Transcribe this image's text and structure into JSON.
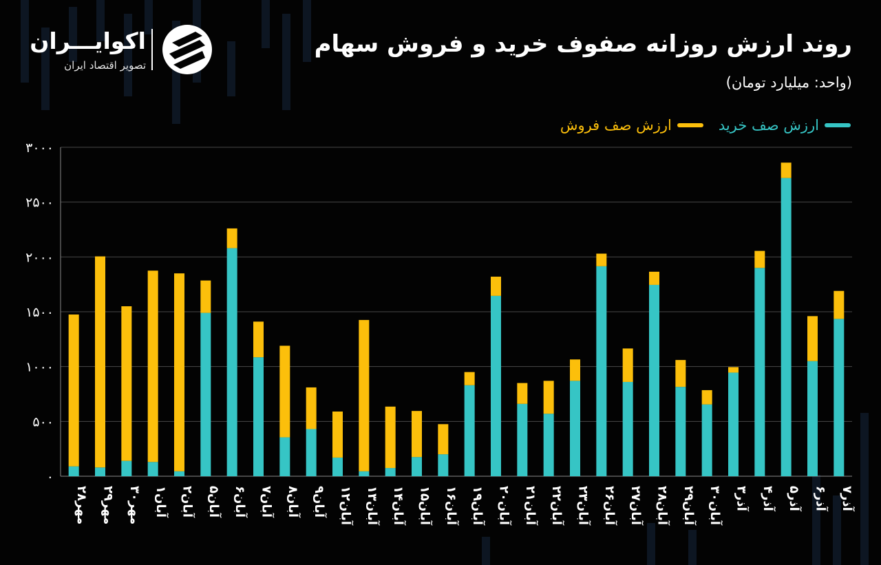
{
  "title": "روند ارزش روزانه صفوف خرید و فروش سهام",
  "subtitle": "(واحد: میلیارد تومان)",
  "logo": {
    "name": "اکوایـــران",
    "tagline": "تصویر اقتصاد ایران"
  },
  "colors": {
    "buy": "#36c5c5",
    "sell": "#fcbf0b",
    "background": "#030303",
    "grid": "#4a4a4a"
  },
  "chart_data": {
    "type": "bar",
    "stacked": true,
    "title": "روند ارزش روزانه صفوف خرید و فروش سهام",
    "subtitle": "(واحد: میلیارد تومان)",
    "legend_position": "top-right",
    "grid": true,
    "ylim": [
      0,
      3000
    ],
    "yticks": [
      0,
      500,
      1000,
      1500,
      2000,
      2500,
      3000
    ],
    "ytick_labels": [
      "۰",
      "۵۰۰",
      "۱۰۰۰",
      "۱۵۰۰",
      "۲۰۰۰",
      "۲۵۰۰",
      "۳۰۰۰"
    ],
    "categories": [
      "۲۸مهر",
      "۲۹مهر",
      "۳۰مهر",
      "۱آبان",
      "۲آبان",
      "۵آبان",
      "۶آبان",
      "۷آبان",
      "۸آبان",
      "۹آبان",
      "۱۲آبان",
      "۱۳آبان",
      "۱۴آبان",
      "۱۵آبان",
      "۱۶آبان",
      "۱۹آبان",
      "۲۰آبان",
      "۲۱آبان",
      "۲۲آبان",
      "۲۳آبان",
      "۲۶آبان",
      "۲۷آبان",
      "۲۸آبان",
      "۲۹آبان",
      "۳۰آبان",
      "۳آذر",
      "۴آذر",
      "۵آذر",
      "۶آذر",
      "۷آذر"
    ],
    "series": [
      {
        "name": "ارزش صف خرید",
        "values": [
          90,
          80,
          140,
          130,
          45,
          1490,
          2080,
          1085,
          355,
          430,
          170,
          45,
          75,
          175,
          200,
          830,
          1645,
          660,
          570,
          870,
          1915,
          860,
          1745,
          815,
          655,
          945,
          1900,
          2720,
          1050,
          1435
        ]
      },
      {
        "name": "ارزش صف فروش",
        "values": [
          1385,
          1925,
          1410,
          1745,
          1805,
          295,
          180,
          325,
          835,
          380,
          420,
          1380,
          560,
          420,
          275,
          120,
          175,
          190,
          300,
          195,
          115,
          305,
          120,
          245,
          130,
          50,
          155,
          140,
          410,
          255
        ]
      }
    ]
  }
}
